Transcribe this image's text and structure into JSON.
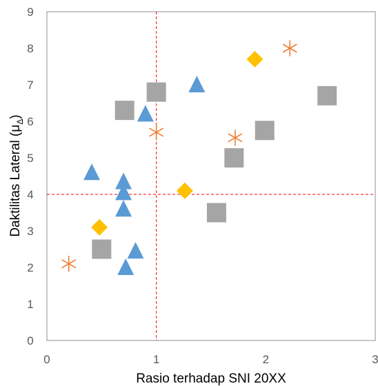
{
  "chart_data": {
    "type": "scatter",
    "title": "",
    "xlabel": "Rasio terhadap SNI 20XX",
    "ylabel_main": "Daktilitas Lateral (μ",
    "ylabel_sub": "Δ",
    "ylabel_end": ")",
    "xlim": [
      0,
      3
    ],
    "ylim": [
      0,
      9
    ],
    "x_ticks": [
      "0",
      "1",
      "2",
      "3"
    ],
    "y_ticks": [
      "0",
      "1",
      "2",
      "3",
      "4",
      "5",
      "6",
      "7",
      "8",
      "9"
    ],
    "grid": false,
    "legend": "none",
    "reference_lines": {
      "x": 1,
      "y": 4,
      "color": "#FF0000",
      "style": "dashed"
    },
    "series": [
      {
        "marker": "triangle",
        "color": "#5B9BD5",
        "points": [
          [
            0.41,
            4.6
          ],
          [
            0.7,
            4.35
          ],
          [
            0.7,
            4.05
          ],
          [
            0.7,
            3.6
          ],
          [
            0.81,
            2.45
          ],
          [
            0.72,
            2.0
          ],
          [
            0.9,
            6.2
          ],
          [
            1.37,
            7.0
          ]
        ]
      },
      {
        "marker": "square",
        "color": "#A5A5A5",
        "points": [
          [
            0.71,
            6.3
          ],
          [
            1.0,
            6.8
          ],
          [
            2.56,
            6.7
          ],
          [
            1.99,
            5.75
          ],
          [
            1.71,
            5.0
          ],
          [
            1.55,
            3.5
          ],
          [
            0.5,
            2.5
          ]
        ]
      },
      {
        "marker": "diamond",
        "color": "#FFC000",
        "points": [
          [
            1.9,
            7.7
          ],
          [
            1.26,
            4.1
          ],
          [
            0.48,
            3.1
          ]
        ]
      },
      {
        "marker": "star",
        "color": "#ED7D31",
        "points": [
          [
            2.22,
            8.0
          ],
          [
            1.0,
            5.7
          ],
          [
            1.72,
            5.55
          ],
          [
            0.2,
            2.1
          ]
        ]
      }
    ]
  }
}
